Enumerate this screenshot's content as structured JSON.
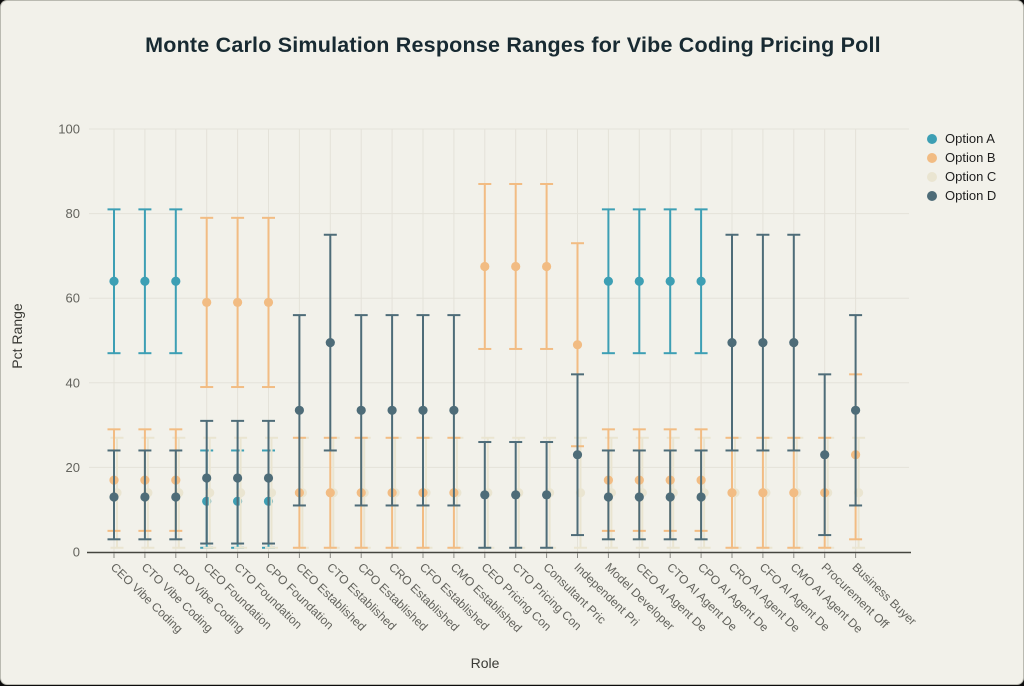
{
  "page": {
    "background": "#0c0c0c",
    "card_background": "#f2f1ea"
  },
  "colors": {
    "background": "#f2f1ea",
    "grid": "#e4e2d9",
    "axis_line": "#45453f",
    "tick_text": "#63635d",
    "title_text": "#182a32",
    "axis_title_text": "#3a3a35",
    "legend_text": "#1f1f1f"
  },
  "legend": {
    "position": "right",
    "items": [
      {
        "label": "Option A",
        "color": "#3d9fb4"
      },
      {
        "label": "Option B",
        "color": "#f2bc83"
      },
      {
        "label": "Option C",
        "color": "#eae5d1"
      },
      {
        "label": "Option D",
        "color": "#4e6c78"
      }
    ]
  },
  "chart_data": {
    "type": "scatter",
    "subtype": "mean-with-error-bars",
    "title": "Monte Carlo Simulation Response Ranges for Vibe Coding Pricing Poll",
    "xlabel": "Role",
    "ylabel": "Pct Range",
    "ylim": [
      0,
      100
    ],
    "yticks": [
      0,
      20,
      40,
      60,
      80,
      100
    ],
    "grid": true,
    "legend_position": "right",
    "categories": [
      "CEO Vibe Coding",
      "CTO Vibe Coding",
      "CPO Vibe Coding",
      "CEO Foundation",
      "CTO Foundation",
      "CPO Foundation",
      "CEO Established",
      "CTO Established",
      "CPO Established",
      "CRO Established",
      "CFO Established",
      "CMO Established",
      "CEO Pricing Con",
      "CTO Pricing Con",
      "Consultant Pric",
      "Independent Pri",
      "Model Developer",
      "CEO AI Agent De",
      "CTO AI Agent De",
      "CPO AI Agent De",
      "CRO AI Agent De",
      "CFO AI Agent De",
      "CMO AI Agent De",
      "Procurement Off",
      "Business Buyer"
    ],
    "series": [
      {
        "name": "Option A",
        "color": "#3d9fb4",
        "mean": [
          64,
          64,
          64,
          12,
          12,
          12,
          null,
          null,
          null,
          null,
          null,
          null,
          null,
          null,
          null,
          null,
          64,
          64,
          64,
          64,
          null,
          null,
          null,
          null,
          null
        ],
        "low": [
          47,
          47,
          47,
          1,
          1,
          1,
          null,
          null,
          null,
          null,
          null,
          null,
          null,
          null,
          null,
          null,
          47,
          47,
          47,
          47,
          null,
          null,
          null,
          null,
          null
        ],
        "high": [
          81,
          81,
          81,
          24,
          24,
          24,
          null,
          null,
          null,
          null,
          null,
          null,
          null,
          null,
          null,
          null,
          81,
          81,
          81,
          81,
          null,
          null,
          null,
          null,
          null
        ]
      },
      {
        "name": "Option B",
        "color": "#f2bc83",
        "mean": [
          17,
          17,
          17,
          59,
          59,
          59,
          14,
          14,
          14,
          14,
          14,
          14,
          67.5,
          67.5,
          67.5,
          49,
          17,
          17,
          17,
          17,
          14,
          14,
          14,
          14,
          23
        ],
        "low": [
          5,
          5,
          5,
          39,
          39,
          39,
          1,
          1,
          1,
          1,
          1,
          1,
          48,
          48,
          48,
          25,
          5,
          5,
          5,
          5,
          1,
          1,
          1,
          1,
          3
        ],
        "high": [
          29,
          29,
          29,
          79,
          79,
          79,
          27,
          27,
          27,
          27,
          27,
          27,
          87,
          87,
          87,
          73,
          29,
          29,
          29,
          29,
          27,
          27,
          27,
          27,
          42
        ]
      },
      {
        "name": "Option C",
        "color": "#eae5d1",
        "mean": [
          14,
          14,
          14,
          14,
          14,
          14,
          14,
          14,
          14,
          14,
          14,
          14,
          14,
          14,
          14,
          14,
          14,
          14,
          14,
          14,
          14,
          14,
          14,
          14,
          14
        ],
        "low": [
          1,
          1,
          1,
          1,
          1,
          1,
          1,
          1,
          1,
          1,
          1,
          1,
          1,
          1,
          1,
          1,
          1,
          1,
          1,
          1,
          1,
          1,
          1,
          1,
          1
        ],
        "high": [
          27,
          27,
          27,
          27,
          27,
          27,
          27,
          27,
          27,
          27,
          27,
          27,
          27,
          27,
          27,
          27,
          27,
          27,
          27,
          27,
          27,
          27,
          27,
          27,
          27
        ]
      },
      {
        "name": "Option D",
        "color": "#4e6c78",
        "mean": [
          13,
          13,
          13,
          17.5,
          17.5,
          17.5,
          33.5,
          49.5,
          33.5,
          33.5,
          33.5,
          33.5,
          13.5,
          13.5,
          13.5,
          23,
          13,
          13,
          13,
          13,
          49.5,
          49.5,
          49.5,
          23,
          33.5
        ],
        "low": [
          3,
          3,
          3,
          2,
          2,
          2,
          11,
          24,
          11,
          11,
          11,
          11,
          1,
          1,
          1,
          4,
          3,
          3,
          3,
          3,
          24,
          24,
          24,
          4,
          11
        ],
        "high": [
          24,
          24,
          24,
          31,
          31,
          31,
          56,
          75,
          56,
          56,
          56,
          56,
          26,
          26,
          26,
          42,
          24,
          24,
          24,
          24,
          75,
          75,
          75,
          42,
          56
        ]
      }
    ]
  }
}
